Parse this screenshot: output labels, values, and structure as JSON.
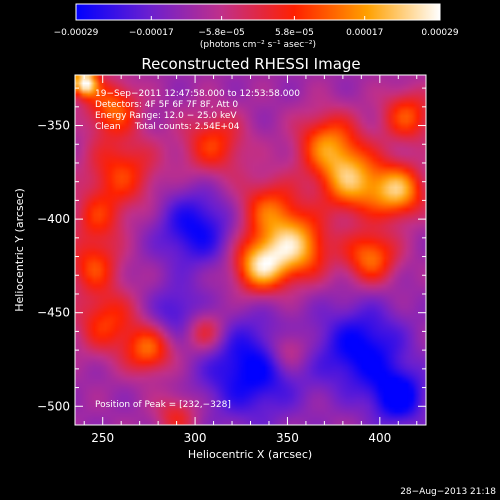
{
  "chart_data": {
    "type": "heatmap",
    "title": "Reconstructed RHESSI Image",
    "xlabel": "Heliocentric X (arcsec)",
    "ylabel": "Heliocentric Y (arcsec)",
    "xlim": [
      235,
      425
    ],
    "ylim": [
      -510,
      -323
    ],
    "x_ticks": [
      250,
      300,
      350,
      400
    ],
    "y_ticks": [
      -500,
      -450,
      -400,
      -350
    ],
    "x_tick_labels": [
      "250",
      "300",
      "350",
      "400"
    ],
    "y_tick_labels": [
      "−500",
      "−450",
      "−400",
      "−350"
    ],
    "colorbar": {
      "ticks": [
        -0.00029,
        -0.00017,
        -5.8e-05,
        5.8e-05,
        0.00017,
        0.00029
      ],
      "tick_labels": [
        "−0.00029",
        "−0.00017",
        "−5.8e−05",
        "5.8e−05",
        "0.00017",
        "0.00029"
      ],
      "range": [
        -0.00029,
        0.00029
      ],
      "unit_label": "(photons cm⁻² s⁻¹ asec⁻²)",
      "colors": [
        "#0000ff",
        "#6a1fd0",
        "#c0308a",
        "#ff2000",
        "#ffa000",
        "#ffffff"
      ]
    },
    "annotations": [
      "19−Sep−2011 12:47:58.000 to 12:53:58.000",
      "Detectors: 4F 5F 6F 7F 8F, Att 0",
      "Energy Range: 12.0 − 25.0 keV",
      "Clean     Total counts: 2.54E+04"
    ],
    "peak_label": "Position of Peak = [232,−328]",
    "grid": false,
    "sources": [
      {
        "x": 240,
        "y": -327,
        "amp": 1.0,
        "w": 5
      },
      {
        "x": 255,
        "y": -340,
        "amp": 0.55,
        "w": 10
      },
      {
        "x": 260,
        "y": -375,
        "amp": 0.45,
        "w": 14
      },
      {
        "x": 247,
        "y": -400,
        "amp": 0.35,
        "w": 10
      },
      {
        "x": 245,
        "y": -425,
        "amp": 0.45,
        "w": 10
      },
      {
        "x": 252,
        "y": -455,
        "amp": 0.45,
        "w": 12
      },
      {
        "x": 275,
        "y": -470,
        "amp": 0.55,
        "w": 9
      },
      {
        "x": 310,
        "y": -360,
        "amp": 0.45,
        "w": 12
      },
      {
        "x": 340,
        "y": -395,
        "amp": 0.5,
        "w": 12
      },
      {
        "x": 335,
        "y": -425,
        "amp": 0.8,
        "w": 10
      },
      {
        "x": 355,
        "y": -415,
        "amp": 0.75,
        "w": 12
      },
      {
        "x": 372,
        "y": -360,
        "amp": 0.6,
        "w": 12
      },
      {
        "x": 385,
        "y": -380,
        "amp": 0.7,
        "w": 12
      },
      {
        "x": 410,
        "y": -385,
        "amp": 0.75,
        "w": 10
      },
      {
        "x": 415,
        "y": -345,
        "amp": 0.5,
        "w": 10
      },
      {
        "x": 395,
        "y": -420,
        "amp": 0.6,
        "w": 10
      },
      {
        "x": 305,
        "y": -460,
        "amp": 0.4,
        "w": 8
      },
      {
        "x": 290,
        "y": -505,
        "amp": 0.35,
        "w": 8
      },
      {
        "x": 350,
        "y": -470,
        "amp": 0.35,
        "w": 8
      },
      {
        "x": 300,
        "y": -405,
        "amp": -0.45,
        "w": 14
      },
      {
        "x": 330,
        "y": -480,
        "amp": -0.5,
        "w": 18
      },
      {
        "x": 390,
        "y": -470,
        "amp": -0.5,
        "w": 16
      },
      {
        "x": 410,
        "y": -495,
        "amp": -0.55,
        "w": 10
      },
      {
        "x": 290,
        "y": -450,
        "amp": -0.3,
        "w": 10
      }
    ]
  },
  "footer": {
    "timestamp": "28−Aug−2013 21:18"
  }
}
